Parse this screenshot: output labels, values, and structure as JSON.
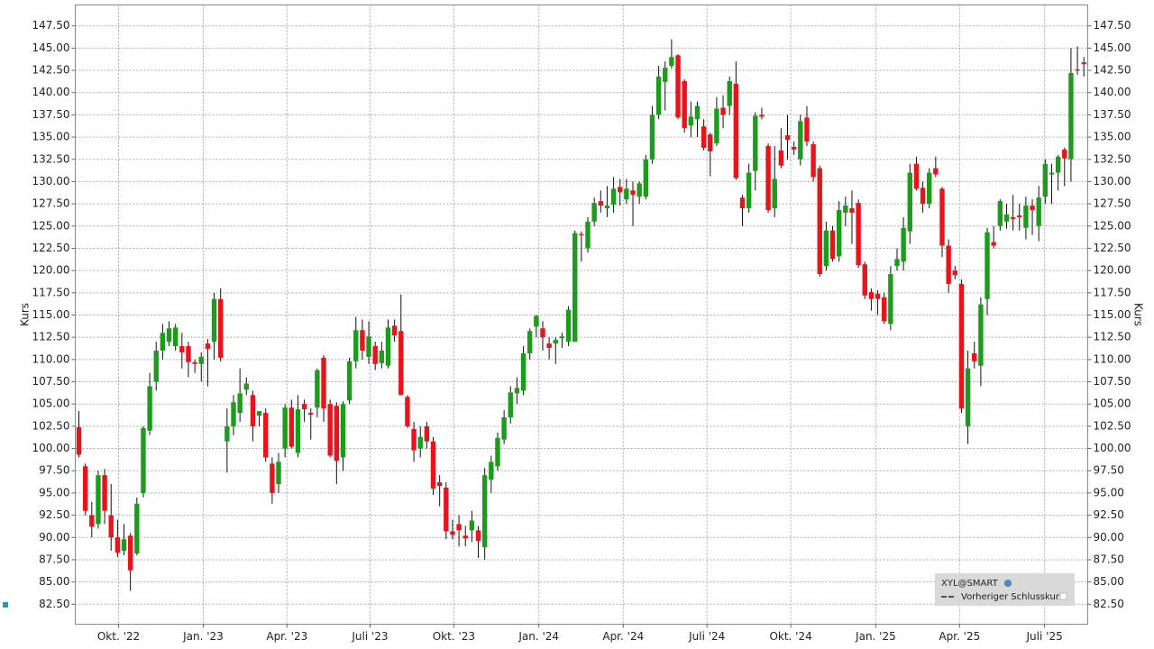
{
  "chart_data": {
    "type": "candlestick",
    "y_label": "Kurs",
    "ylim": [
      80.25,
      149.85
    ],
    "yticks": [
      {
        "value": 82.5,
        "label": "82.50"
      },
      {
        "value": 85,
        "label": "85.00"
      },
      {
        "value": 87.5,
        "label": "87.50"
      },
      {
        "value": 90,
        "label": "90.00"
      },
      {
        "value": 92.5,
        "label": "92.50"
      },
      {
        "value": 95,
        "label": "95.00"
      },
      {
        "value": 97.5,
        "label": "97.50"
      },
      {
        "value": 100,
        "label": "100.00"
      },
      {
        "value": 102.5,
        "label": "102.50"
      },
      {
        "value": 105,
        "label": "105.00"
      },
      {
        "value": 107.5,
        "label": "107.50"
      },
      {
        "value": 110,
        "label": "110.00"
      },
      {
        "value": 112.5,
        "label": "112.50"
      },
      {
        "value": 115,
        "label": "115.00"
      },
      {
        "value": 117.5,
        "label": "117.50"
      },
      {
        "value": 120,
        "label": "120.00"
      },
      {
        "value": 122.5,
        "label": "122.50"
      },
      {
        "value": 125,
        "label": "125.00"
      },
      {
        "value": 127.5,
        "label": "127.50"
      },
      {
        "value": 130,
        "label": "130.00"
      },
      {
        "value": 132.5,
        "label": "132.50"
      },
      {
        "value": 135,
        "label": "135.00"
      },
      {
        "value": 137.5,
        "label": "137.50"
      },
      {
        "value": 140,
        "label": "140.00"
      },
      {
        "value": 142.5,
        "label": "142.50"
      },
      {
        "value": 145,
        "label": "145.00"
      },
      {
        "value": 147.5,
        "label": "147.50"
      }
    ],
    "xlim": [
      -0.56,
      156.6
    ],
    "xticks": [
      {
        "value": 6.16,
        "label": "Okt. '22"
      },
      {
        "value": 19.31,
        "label": "Jan. '23"
      },
      {
        "value": 32.3,
        "label": "Apr. '23"
      },
      {
        "value": 45.2,
        "label": "Juli '23"
      },
      {
        "value": 58.2,
        "label": "Okt. '23"
      },
      {
        "value": 71.4,
        "label": "Jan. '24"
      },
      {
        "value": 84.5,
        "label": "Apr. '24"
      },
      {
        "value": 97.5,
        "label": "Juli '24"
      },
      {
        "value": 110.5,
        "label": "Okt. '24"
      },
      {
        "value": 123.7,
        "label": "Jan. '25"
      },
      {
        "value": 136.7,
        "label": "Apr. '25"
      },
      {
        "value": 149.9,
        "label": "Juli '25"
      }
    ],
    "grid": true,
    "up_color": "#1c9c1c",
    "down_color": "#e8141c",
    "series": [
      {
        "name": "XYL@SMART",
        "open": [
          102.4,
          98,
          92.5,
          91.5,
          97,
          92.5,
          90,
          88.5,
          90.2,
          88.2,
          95,
          102,
          107.5,
          111,
          112,
          111.5,
          111.5,
          111.5,
          109.7,
          109.5,
          111.8,
          112,
          116.8,
          100.8,
          102.5,
          104,
          106.6,
          106,
          103.7,
          104,
          98.3,
          96,
          100,
          104.6,
          99.5,
          105,
          104,
          104.6,
          110.2,
          105,
          104.8,
          99,
          105.4,
          109.8,
          113.3,
          110.3,
          111.5,
          109.6,
          109.3,
          113.8,
          113.2,
          105.8,
          102.2,
          100,
          102.5,
          100.8,
          96.2,
          95.6,
          90.7,
          91.5,
          90.2,
          90.8,
          90.8,
          88.9,
          96.5,
          98,
          101,
          103.5,
          106.2,
          106.5,
          110.7,
          113.7,
          113.5,
          111.8,
          111.8,
          112.4,
          112,
          112,
          124.1,
          122.5,
          125.5,
          127.8,
          127,
          127.4,
          129.4,
          128,
          129,
          128.3,
          128.3,
          132.5,
          137.5,
          141.2,
          143,
          144.2,
          141.3,
          136.3,
          137,
          136.2,
          135.3,
          134.3,
          138.3,
          138.5,
          141,
          128.2,
          127,
          131.2,
          137.5,
          134,
          127,
          133.5,
          135.2,
          133.9,
          132.5,
          137.2,
          134.2,
          131.5,
          120.5,
          124.5,
          121.6,
          126.5,
          127,
          127.6,
          120.7,
          117.6,
          117.4,
          117,
          114,
          120.5,
          121,
          124.4,
          132,
          129.3,
          127.5,
          131.5,
          129.2,
          122.8,
          120,
          118.5,
          102.5,
          110.7,
          109.3,
          116.8,
          123.2,
          125,
          125.5,
          126,
          126.2,
          124.8,
          127.3,
          125,
          128.3,
          130.8,
          131,
          133.6,
          132.5,
          142.6,
          143.4
        ],
        "high": [
          104.2,
          98.3,
          94,
          97.5,
          97.7,
          96,
          92,
          91.5,
          90.5,
          94.5,
          102.5,
          108.5,
          112,
          114,
          114.3,
          114,
          113,
          112,
          110,
          110.8,
          112.3,
          117.5,
          118,
          104.5,
          106,
          109,
          108,
          106.5,
          104.2,
          104.5,
          99,
          99.5,
          105,
          105.5,
          106,
          105.5,
          104.5,
          109,
          110.5,
          105.5,
          105.2,
          105.3,
          110.2,
          114.8,
          114.5,
          114.3,
          112,
          112,
          114.5,
          114.5,
          117.3,
          106,
          103,
          102.5,
          103,
          101.3,
          97,
          96.2,
          92,
          92.5,
          91.3,
          93,
          91.3,
          97.8,
          99.2,
          101.8,
          104.3,
          107,
          108,
          111.5,
          113.5,
          115,
          114.3,
          112.5,
          112.5,
          113,
          116,
          124.5,
          124.4,
          126,
          128.2,
          129,
          129.5,
          130.5,
          130.3,
          130.3,
          130,
          130,
          133,
          138.5,
          143,
          143.5,
          146,
          144.3,
          141.5,
          139,
          139,
          137,
          135.5,
          139.5,
          139.7,
          141.8,
          143.5,
          128.5,
          132,
          137.8,
          138.3,
          134.3,
          134,
          136,
          137.5,
          134.5,
          137.5,
          138.5,
          134.5,
          131.8,
          125.5,
          125,
          127.8,
          128.3,
          129,
          128,
          121,
          118,
          117.8,
          117.5,
          120.5,
          122.5,
          126,
          132,
          132.8,
          130,
          131.5,
          132.8,
          129.4,
          123.5,
          120.5,
          119,
          111,
          112,
          117,
          124.8,
          125,
          128,
          127.5,
          128.5,
          127.5,
          128.3,
          128,
          129.5,
          132.5,
          132,
          133,
          133.8,
          145,
          145.2,
          144
        ],
        "low": [
          99,
          92.5,
          90,
          91,
          91.5,
          88.5,
          87.8,
          88,
          84,
          88,
          94.5,
          101.5,
          106.5,
          110,
          111.5,
          111,
          109,
          108,
          108.5,
          107.5,
          107,
          110,
          109.8,
          97.3,
          101.5,
          103,
          106,
          100.8,
          102.5,
          98.5,
          93.8,
          95,
          99,
          100,
          99,
          103,
          101,
          103.5,
          103,
          99,
          96,
          97.5,
          105,
          109,
          110,
          109.5,
          108.8,
          109,
          109,
          112,
          106,
          102.3,
          98.5,
          99,
          100,
          94.8,
          93.5,
          89.8,
          89.8,
          89,
          89,
          89.5,
          87.7,
          87.5,
          95,
          97.5,
          100.5,
          102.8,
          105,
          106,
          110,
          112.5,
          111,
          110,
          109.5,
          111.3,
          111.5,
          112,
          121,
          122,
          125,
          126.5,
          126,
          126.5,
          127.3,
          127.5,
          125,
          127.5,
          128,
          132,
          137,
          138,
          142.7,
          137,
          135.5,
          135,
          135,
          133.5,
          130.6,
          134,
          136,
          137.5,
          130.2,
          125,
          126.5,
          129,
          137,
          126.5,
          126,
          131.5,
          132.5,
          133,
          131.8,
          134,
          130,
          119.3,
          120,
          121,
          121,
          125,
          123,
          120.3,
          116.8,
          115.5,
          115,
          114,
          113.3,
          120,
          120,
          123,
          129,
          126.5,
          127,
          130.5,
          121.5,
          117.5,
          119,
          104,
          100.5,
          109,
          107,
          115,
          122.5,
          124.5,
          124.7,
          124.5,
          124.5,
          123.5,
          124,
          123.3,
          127.5,
          127.5,
          129,
          129.5,
          130,
          142,
          141.8
        ],
        "close": [
          99.3,
          93,
          91.2,
          97,
          93,
          90,
          88.3,
          89.8,
          86.3,
          93.8,
          102.3,
          107,
          111,
          113,
          113.5,
          113.6,
          110.8,
          109.7,
          109.5,
          110.3,
          111.2,
          116.8,
          110.2,
          102.5,
          105.2,
          106.2,
          107.3,
          102.5,
          104.2,
          99,
          95,
          98.5,
          104.6,
          100.2,
          104.4,
          104.4,
          103.8,
          108.8,
          104.5,
          99.2,
          98.6,
          105,
          109.8,
          113.3,
          111,
          112.6,
          109.5,
          111,
          113.6,
          112.7,
          106,
          102.5,
          99.8,
          101.3,
          100.8,
          95.5,
          95.8,
          90.7,
          90.3,
          90.8,
          89.9,
          91.9,
          89.6,
          97,
          98.5,
          101.2,
          103.5,
          106.3,
          106.8,
          110.7,
          113.2,
          114.9,
          112.5,
          111.3,
          112.2,
          112.6,
          115.6,
          124.2,
          124,
          125.5,
          127.6,
          127.3,
          127.3,
          129.2,
          128.8,
          129.2,
          128.5,
          129.8,
          132.5,
          137.5,
          141.8,
          142.8,
          144,
          137.2,
          136,
          137.3,
          138.5,
          133.8,
          133.4,
          138.2,
          137.5,
          141.3,
          130.4,
          127,
          131,
          137.4,
          137.3,
          126.8,
          130.3,
          131.8,
          134.7,
          133.6,
          136.8,
          134.5,
          130.5,
          119.6,
          124.5,
          121.3,
          126.8,
          127.3,
          126.5,
          120.6,
          117.2,
          116.8,
          116.8,
          114.3,
          119.6,
          121.3,
          124.8,
          131,
          129.2,
          127.5,
          131,
          130.8,
          122.8,
          118.5,
          119.5,
          104.5,
          109,
          109.8,
          116.2,
          124.3,
          122.8,
          127.8,
          126.3,
          125.8,
          126,
          127.3,
          126.8,
          128.2,
          132,
          131,
          132.8,
          132.6,
          142.2,
          142.5,
          143.2
        ]
      }
    ],
    "reference_line": {
      "name": "Vorheriger Schlusskurs"
    }
  }
}
